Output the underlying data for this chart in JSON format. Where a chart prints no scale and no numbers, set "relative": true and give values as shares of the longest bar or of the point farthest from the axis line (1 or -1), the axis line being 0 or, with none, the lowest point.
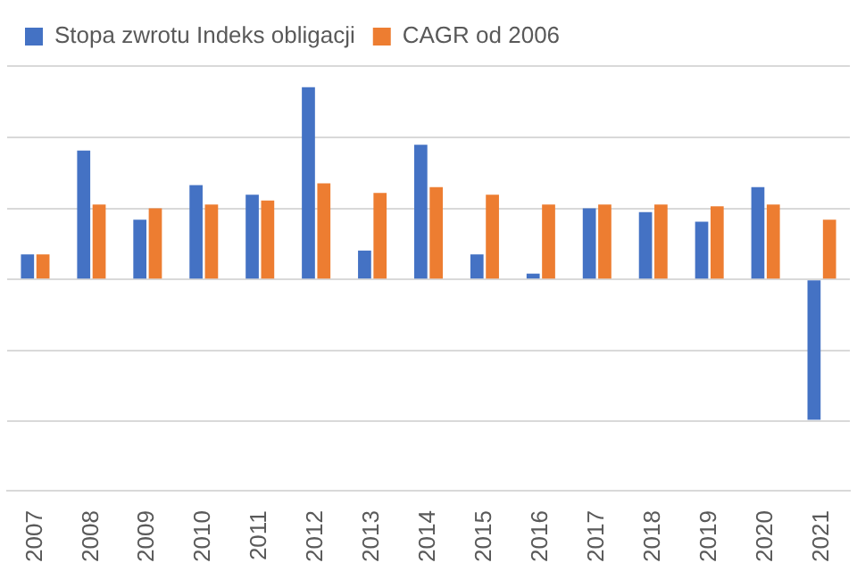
{
  "chart_data": {
    "type": "bar",
    "relative": true,
    "grid": "y",
    "legend": "top",
    "categories": [
      "2007",
      "2008",
      "2009",
      "2010",
      "2011",
      "2012",
      "2013",
      "2014",
      "2015",
      "2016",
      "2017",
      "2018",
      "2019",
      "2020",
      "2021"
    ],
    "series": [
      {
        "name": "Stopa zwrotu Indeks obligacji",
        "color": "#4472c4",
        "values": [
          0.13,
          0.67,
          0.31,
          0.49,
          0.44,
          1,
          0.15,
          0.7,
          0.13,
          0.03,
          0.37,
          0.35,
          0.3,
          0.48,
          -0.73
        ]
      },
      {
        "name": "CAGR od 2006",
        "color": "#ed7d31",
        "values": [
          0.13,
          0.39,
          0.37,
          0.39,
          0.41,
          0.5,
          0.45,
          0.48,
          0.44,
          0.39,
          0.39,
          0.39,
          0.38,
          0.39,
          0.31
        ]
      }
    ]
  }
}
